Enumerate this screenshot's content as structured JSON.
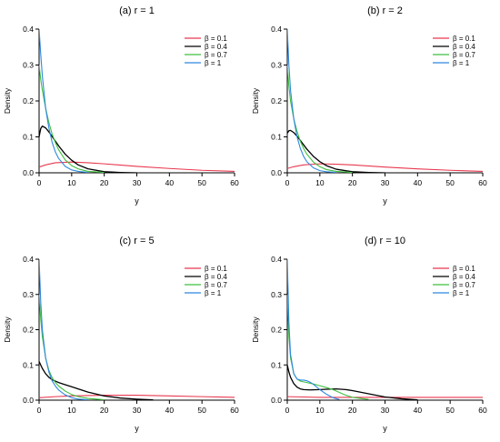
{
  "chart_data": [
    {
      "type": "line",
      "title": "(a) r = 1",
      "xlabel": "y",
      "ylabel": "Density",
      "xlim": [
        0,
        60
      ],
      "ylim": [
        0,
        0.4
      ],
      "xticks": [
        "0",
        "10",
        "20",
        "30",
        "40",
        "50",
        "60"
      ],
      "yticks": [
        "0.0",
        "0.1",
        "0.2",
        "0.3",
        "0.4"
      ],
      "legend_position": "top-right",
      "series": [
        {
          "name": "β = 0.1",
          "color": "#e8384f",
          "x": [
            0,
            2,
            5,
            10,
            15,
            20,
            30,
            40,
            50,
            60
          ],
          "y": [
            0.016,
            0.022,
            0.028,
            0.03,
            0.028,
            0.025,
            0.018,
            0.012,
            0.007,
            0.004
          ]
        },
        {
          "name": "β = 0.4",
          "color": "#000000",
          "x": [
            0,
            0.5,
            1,
            2,
            3,
            4,
            5,
            6,
            8,
            10,
            12,
            15,
            20,
            25,
            30
          ],
          "y": [
            0.1,
            0.123,
            0.13,
            0.125,
            0.114,
            0.101,
            0.088,
            0.075,
            0.052,
            0.035,
            0.022,
            0.011,
            0.003,
            0.001,
            0.0
          ]
        },
        {
          "name": "β = 0.7",
          "color": "#3fbf3f",
          "x": [
            0,
            0.5,
            1,
            2,
            3,
            4,
            5,
            6,
            8,
            10,
            12,
            15,
            20
          ],
          "y": [
            0.3,
            0.26,
            0.23,
            0.18,
            0.14,
            0.108,
            0.084,
            0.064,
            0.036,
            0.02,
            0.011,
            0.004,
            0.001
          ]
        },
        {
          "name": "β = 1",
          "color": "#2e88e0",
          "x": [
            0,
            0.5,
            1,
            2,
            3,
            4,
            5,
            6,
            8,
            10,
            12,
            15
          ],
          "y": [
            0.4,
            0.33,
            0.27,
            0.18,
            0.125,
            0.085,
            0.058,
            0.04,
            0.018,
            0.008,
            0.004,
            0.001
          ]
        }
      ]
    },
    {
      "type": "line",
      "title": "(b) r = 2",
      "xlabel": "y",
      "ylabel": "Density",
      "xlim": [
        0,
        60
      ],
      "ylim": [
        0,
        0.4
      ],
      "xticks": [
        "0",
        "10",
        "20",
        "30",
        "40",
        "50",
        "60"
      ],
      "yticks": [
        "0.0",
        "0.1",
        "0.2",
        "0.3",
        "0.4"
      ],
      "legend_position": "top-right",
      "series": [
        {
          "name": "β = 0.1",
          "color": "#e8384f",
          "x": [
            0,
            2,
            5,
            10,
            15,
            20,
            30,
            40,
            50,
            60
          ],
          "y": [
            0.012,
            0.017,
            0.022,
            0.025,
            0.024,
            0.022,
            0.016,
            0.011,
            0.007,
            0.004
          ]
        },
        {
          "name": "β = 0.4",
          "color": "#000000",
          "x": [
            0,
            0.5,
            1,
            2,
            3,
            4,
            5,
            6,
            8,
            10,
            12,
            15,
            20,
            25,
            30
          ],
          "y": [
            0.11,
            0.117,
            0.118,
            0.112,
            0.102,
            0.09,
            0.078,
            0.066,
            0.046,
            0.031,
            0.02,
            0.01,
            0.003,
            0.001,
            0.0
          ]
        },
        {
          "name": "β = 0.7",
          "color": "#3fbf3f",
          "x": [
            0,
            0.5,
            1,
            2,
            3,
            4,
            5,
            6,
            8,
            10,
            12,
            15,
            20
          ],
          "y": [
            0.3,
            0.24,
            0.2,
            0.15,
            0.115,
            0.088,
            0.068,
            0.052,
            0.03,
            0.017,
            0.009,
            0.004,
            0.001
          ]
        },
        {
          "name": "β = 1",
          "color": "#2e88e0",
          "x": [
            0,
            0.5,
            1,
            2,
            3,
            4,
            5,
            6,
            8,
            10,
            12,
            15
          ],
          "y": [
            0.4,
            0.3,
            0.23,
            0.15,
            0.1,
            0.068,
            0.046,
            0.031,
            0.014,
            0.006,
            0.003,
            0.001
          ]
        }
      ]
    },
    {
      "type": "line",
      "title": "(c) r = 5",
      "xlabel": "y",
      "ylabel": "Density",
      "xlim": [
        0,
        60
      ],
      "ylim": [
        0,
        0.4
      ],
      "xticks": [
        "0",
        "10",
        "20",
        "30",
        "40",
        "50",
        "60"
      ],
      "yticks": [
        "0.0",
        "0.1",
        "0.2",
        "0.3",
        "0.4"
      ],
      "legend_position": "top-right",
      "series": [
        {
          "name": "β = 0.1",
          "color": "#e8384f",
          "x": [
            0,
            5,
            10,
            15,
            20,
            30,
            40,
            50,
            60
          ],
          "y": [
            0.007,
            0.01,
            0.012,
            0.013,
            0.014,
            0.014,
            0.012,
            0.01,
            0.008
          ]
        },
        {
          "name": "β = 0.4",
          "color": "#000000",
          "x": [
            0,
            0.5,
            1,
            2,
            3,
            4,
            5,
            6,
            8,
            10,
            12,
            15,
            20,
            25,
            30,
            35
          ],
          "y": [
            0.11,
            0.1,
            0.09,
            0.075,
            0.065,
            0.058,
            0.054,
            0.05,
            0.044,
            0.038,
            0.032,
            0.023,
            0.012,
            0.006,
            0.003,
            0.001
          ]
        },
        {
          "name": "β = 0.7",
          "color": "#3fbf3f",
          "x": [
            0,
            0.5,
            1,
            2,
            3,
            4,
            5,
            6,
            8,
            10,
            12,
            15,
            20
          ],
          "y": [
            0.3,
            0.23,
            0.18,
            0.12,
            0.085,
            0.064,
            0.05,
            0.04,
            0.026,
            0.016,
            0.01,
            0.005,
            0.001
          ]
        },
        {
          "name": "β = 1",
          "color": "#2e88e0",
          "x": [
            0,
            0.5,
            1,
            2,
            3,
            4,
            5,
            6,
            8,
            10,
            12,
            15
          ],
          "y": [
            0.4,
            0.28,
            0.2,
            0.12,
            0.08,
            0.055,
            0.04,
            0.029,
            0.015,
            0.007,
            0.003,
            0.001
          ]
        }
      ]
    },
    {
      "type": "line",
      "title": "(d) r = 10",
      "xlabel": "y",
      "ylabel": "Density",
      "xlim": [
        0,
        60
      ],
      "ylim": [
        0,
        0.4
      ],
      "xticks": [
        "0",
        "10",
        "20",
        "30",
        "40",
        "50",
        "60"
      ],
      "yticks": [
        "0.0",
        "0.1",
        "0.2",
        "0.3",
        "0.4"
      ],
      "legend_position": "top-right",
      "series": [
        {
          "name": "β = 0.1",
          "color": "#e8384f",
          "x": [
            0,
            5,
            10,
            15,
            20,
            30,
            40,
            50,
            60
          ],
          "y": [
            0.01,
            0.009,
            0.008,
            0.008,
            0.008,
            0.008,
            0.008,
            0.008,
            0.008
          ]
        },
        {
          "name": "β = 0.4",
          "color": "#000000",
          "x": [
            0,
            0.5,
            1,
            2,
            3,
            4,
            5,
            7,
            10,
            12,
            15,
            18,
            20,
            25,
            30,
            35,
            40
          ],
          "y": [
            0.1,
            0.08,
            0.065,
            0.047,
            0.037,
            0.032,
            0.03,
            0.029,
            0.03,
            0.031,
            0.032,
            0.03,
            0.027,
            0.018,
            0.009,
            0.004,
            0.001
          ]
        },
        {
          "name": "β = 0.7",
          "color": "#3fbf3f",
          "x": [
            0,
            0.5,
            1,
            2,
            3,
            4,
            5,
            6,
            8,
            10,
            12,
            14,
            16,
            18,
            20,
            25
          ],
          "y": [
            0.3,
            0.18,
            0.12,
            0.075,
            0.06,
            0.054,
            0.052,
            0.05,
            0.046,
            0.041,
            0.036,
            0.03,
            0.022,
            0.014,
            0.008,
            0.002
          ]
        },
        {
          "name": "β = 1",
          "color": "#2e88e0",
          "x": [
            0,
            0.5,
            1,
            2,
            3,
            4,
            5,
            6,
            7,
            8,
            10,
            12,
            14,
            16
          ],
          "y": [
            0.4,
            0.22,
            0.13,
            0.075,
            0.06,
            0.057,
            0.057,
            0.055,
            0.051,
            0.045,
            0.03,
            0.017,
            0.007,
            0.002
          ]
        }
      ]
    }
  ]
}
